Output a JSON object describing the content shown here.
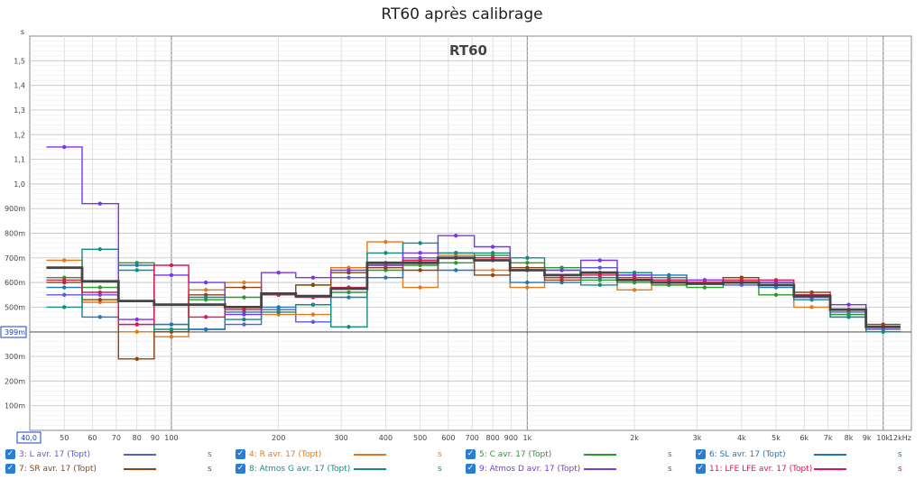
{
  "chart_data": {
    "type": "line",
    "title": "RT60 après calibrage",
    "watermark": "RT60",
    "y_unit": "s",
    "x_scale": "log",
    "xlim": [
      40,
      12000
    ],
    "ylim": [
      0,
      1.6
    ],
    "x_tick_labels": [
      {
        "v": 40,
        "t": "40,0"
      },
      {
        "v": 50,
        "t": "50"
      },
      {
        "v": 60,
        "t": "60"
      },
      {
        "v": 70,
        "t": "70"
      },
      {
        "v": 80,
        "t": "80"
      },
      {
        "v": 90,
        "t": "90"
      },
      {
        "v": 100,
        "t": "100"
      },
      {
        "v": 200,
        "t": "200"
      },
      {
        "v": 300,
        "t": "300"
      },
      {
        "v": 400,
        "t": "400"
      },
      {
        "v": 500,
        "t": "500"
      },
      {
        "v": 600,
        "t": "600"
      },
      {
        "v": 700,
        "t": "700"
      },
      {
        "v": 800,
        "t": "800"
      },
      {
        "v": 900,
        "t": "900"
      },
      {
        "v": 1000,
        "t": "1k"
      },
      {
        "v": 2000,
        "t": "2k"
      },
      {
        "v": 3000,
        "t": "3k"
      },
      {
        "v": 4000,
        "t": "4k"
      },
      {
        "v": 5000,
        "t": "5k"
      },
      {
        "v": 6000,
        "t": "6k"
      },
      {
        "v": 7000,
        "t": "7k"
      },
      {
        "v": 8000,
        "t": "8k"
      },
      {
        "v": 9000,
        "t": "9k"
      },
      {
        "v": 10000,
        "t": "10k"
      },
      {
        "v": 12000,
        "t": "12kHz"
      }
    ],
    "y_tick_labels": [
      {
        "v": 0.1,
        "t": "100m"
      },
      {
        "v": 0.2,
        "t": "200m"
      },
      {
        "v": 0.3,
        "t": "300m"
      },
      {
        "v": 0.399,
        "t": "399m"
      },
      {
        "v": 0.5,
        "t": "500m"
      },
      {
        "v": 0.6,
        "t": "600m"
      },
      {
        "v": 0.7,
        "t": "700m"
      },
      {
        "v": 0.8,
        "t": "800m"
      },
      {
        "v": 0.9,
        "t": "900m"
      },
      {
        "v": 1.0,
        "t": "1,0"
      },
      {
        "v": 1.1,
        "t": "1,1"
      },
      {
        "v": 1.2,
        "t": "1,2"
      },
      {
        "v": 1.3,
        "t": "1,3"
      },
      {
        "v": 1.4,
        "t": "1,4"
      },
      {
        "v": 1.5,
        "t": "1,5"
      }
    ],
    "reference_line": 0.399,
    "bands": [
      50,
      63,
      80,
      100,
      125,
      160,
      200,
      250,
      315,
      400,
      500,
      630,
      800,
      1000,
      1250,
      1600,
      2000,
      2500,
      3150,
      4000,
      5000,
      6300,
      8000,
      10000
    ],
    "average": {
      "color": "#444444",
      "values": [
        0.66,
        0.605,
        0.525,
        0.51,
        0.51,
        0.5,
        0.555,
        0.545,
        0.575,
        0.68,
        0.68,
        0.7,
        0.69,
        0.65,
        0.63,
        0.64,
        0.61,
        0.6,
        0.595,
        0.6,
        0.59,
        0.545,
        0.49,
        0.42
      ]
    },
    "series": [
      {
        "name": "3: L avr. 17 (Topt)",
        "color": "#5b5bd6",
        "values": [
          0.55,
          0.55,
          0.43,
          0.43,
          0.41,
          0.43,
          0.49,
          0.44,
          0.62,
          0.67,
          0.7,
          0.72,
          0.69,
          0.65,
          0.65,
          0.66,
          0.63,
          0.61,
          0.6,
          0.59,
          0.59,
          0.55,
          0.48,
          0.41
        ]
      },
      {
        "name": "4: R avr. 17 (Topt)",
        "color": "#e07a1f",
        "values": [
          0.69,
          0.52,
          0.4,
          0.38,
          0.57,
          0.6,
          0.47,
          0.47,
          0.66,
          0.765,
          0.58,
          0.71,
          0.65,
          0.58,
          0.62,
          0.62,
          0.57,
          0.59,
          0.6,
          0.62,
          0.61,
          0.5,
          0.47,
          0.42
        ]
      },
      {
        "name": "5: C avr. 17 (Topt)",
        "color": "#2a9a2a",
        "values": [
          0.62,
          0.58,
          0.68,
          0.4,
          0.53,
          0.54,
          0.55,
          0.59,
          0.56,
          0.65,
          0.67,
          0.68,
          0.71,
          0.68,
          0.66,
          0.61,
          0.6,
          0.59,
          0.58,
          0.6,
          0.55,
          0.55,
          0.47,
          0.42
        ]
      },
      {
        "name": "6: SL avr. 17 (Topt)",
        "color": "#1f77b4",
        "values": [
          0.58,
          0.46,
          0.67,
          0.43,
          0.41,
          0.48,
          0.5,
          0.51,
          0.54,
          0.62,
          0.69,
          0.65,
          0.7,
          0.6,
          0.6,
          0.62,
          0.64,
          0.63,
          0.6,
          0.6,
          0.58,
          0.54,
          0.46,
          0.4
        ]
      },
      {
        "name": "7: SR avr. 17 (Topt)",
        "color": "#8b4513",
        "values": [
          0.6,
          0.53,
          0.29,
          0.4,
          0.55,
          0.58,
          0.55,
          0.59,
          0.64,
          0.66,
          0.65,
          0.7,
          0.63,
          0.66,
          0.61,
          0.64,
          0.62,
          0.61,
          0.6,
          0.62,
          0.6,
          0.56,
          0.49,
          0.43
        ]
      },
      {
        "name": "8: Atmos G avr. 17 (Topt)",
        "color": "#178a80",
        "values": [
          0.5,
          0.735,
          0.65,
          0.41,
          0.54,
          0.45,
          0.48,
          0.51,
          0.42,
          0.72,
          0.76,
          0.72,
          0.72,
          0.7,
          0.62,
          0.59,
          0.64,
          0.62,
          0.61,
          0.61,
          0.6,
          0.53,
          0.46,
          0.4
        ]
      },
      {
        "name": "9: Atmos D avr. 17 (Topt)",
        "color": "#7b35e8",
        "values": [
          1.15,
          0.92,
          0.45,
          0.63,
          0.6,
          0.47,
          0.64,
          0.62,
          0.65,
          0.67,
          0.72,
          0.79,
          0.745,
          0.65,
          0.65,
          0.69,
          0.63,
          0.6,
          0.61,
          0.6,
          0.6,
          0.54,
          0.51,
          0.42
        ]
      },
      {
        "name": "11: LFE LFE avr. 17 (Topt)",
        "color": "#e0174f",
        "values": [
          0.61,
          0.56,
          0.43,
          0.67,
          0.46,
          0.49,
          0.55,
          0.54,
          0.58,
          0.68,
          0.69,
          0.7,
          0.7,
          0.65,
          0.62,
          0.63,
          0.62,
          0.61,
          0.6,
          0.61,
          0.61,
          0.55,
          0.49,
          0.42
        ]
      }
    ]
  },
  "legend": {
    "unit": "s",
    "check_glyph": "✓",
    "items": [
      {
        "label": "3: L avr. 17 (Topt)",
        "color": "#5b5bd6"
      },
      {
        "label": "4: R avr. 17 (Topt)",
        "color": "#e07a1f"
      },
      {
        "label": "5: C avr. 17 (Topt)",
        "color": "#2a9a2a"
      },
      {
        "label": "6: SL avr. 17 (Topt)",
        "color": "#1f77b4"
      },
      {
        "label": "7: SR avr. 17 (Topt)",
        "color": "#8b4513"
      },
      {
        "label": "8: Atmos G avr. 17 (Topt)",
        "color": "#178a80"
      },
      {
        "label": "9: Atmos D avr. 17 (Topt)",
        "color": "#7b35e8"
      },
      {
        "label": "11: LFE LFE avr. 17 (Topt)",
        "color": "#e0174f"
      }
    ]
  }
}
